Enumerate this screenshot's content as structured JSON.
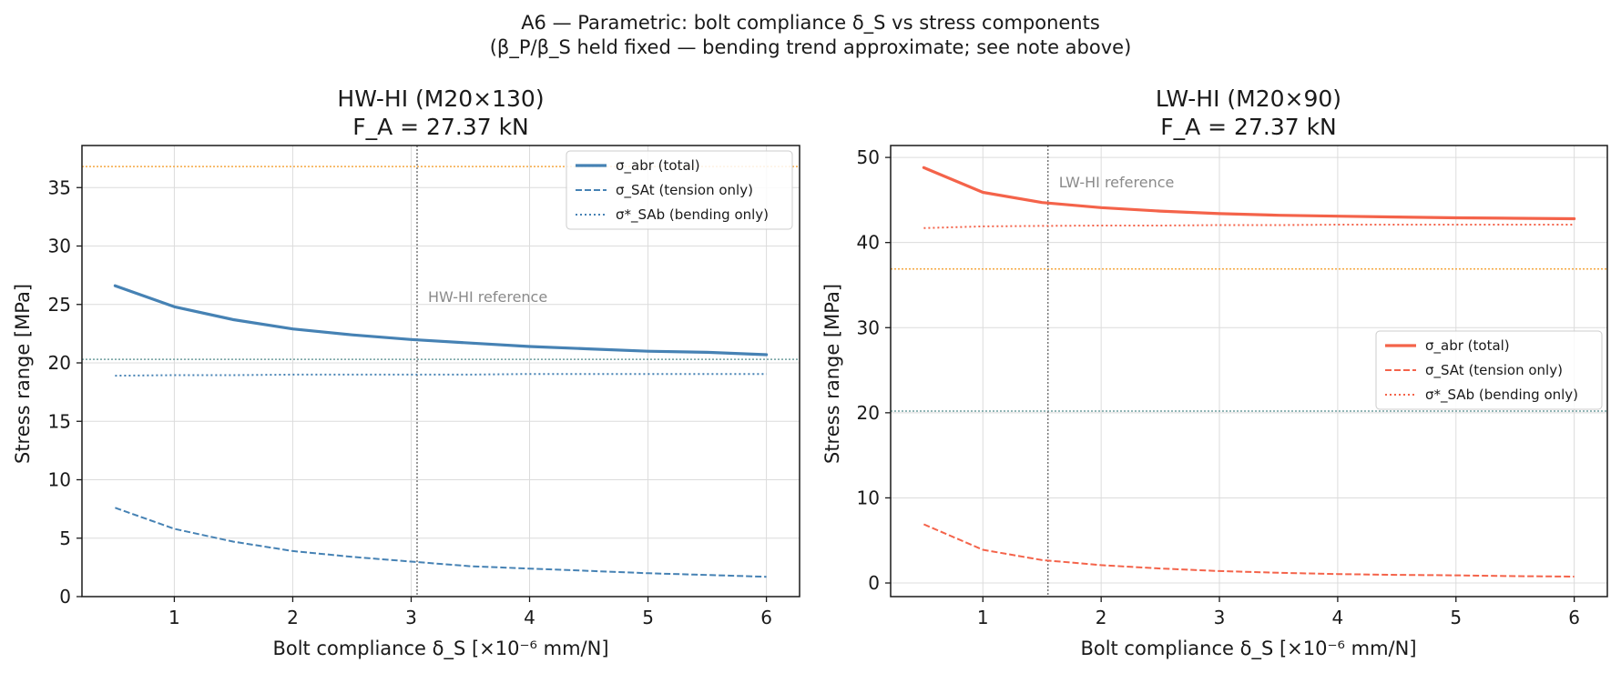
{
  "figure": {
    "suptitle_line1": "A6 — Parametric: bolt compliance δ_S vs stress components",
    "suptitle_line2": "(β_P/β_S held fixed — bending trend approximate; see note above)"
  },
  "chart_data": [
    {
      "type": "line",
      "title_line1": "HW-HI (M20×130)",
      "title_line2": "F_A = 27.37 kN",
      "xlabel": "Bolt compliance δ_S [×10⁻⁶ mm/N]",
      "ylabel": "Stress range [MPa]",
      "xlim": [
        0.22,
        6.28
      ],
      "ylim": [
        0,
        38.6
      ],
      "xticks": [
        1,
        2,
        3,
        4,
        5,
        6
      ],
      "yticks": [
        0,
        5,
        10,
        15,
        20,
        25,
        30,
        35
      ],
      "grid": true,
      "legend_position": "upper right",
      "color": "#4682b4",
      "reference": {
        "x": 3.05,
        "label": "HW-HI reference"
      },
      "hlines": [
        {
          "y": 36.8,
          "color": "#f5a742"
        },
        {
          "y": 20.3,
          "color": "#6e9e9e"
        }
      ],
      "x": [
        0.5,
        1,
        1.5,
        2,
        2.5,
        3,
        3.5,
        4,
        4.5,
        5,
        5.5,
        6
      ],
      "series": [
        {
          "name": "σ_abr (total)",
          "style": "solid",
          "values": [
            26.6,
            24.8,
            23.7,
            22.9,
            22.4,
            22.0,
            21.7,
            21.4,
            21.2,
            21.0,
            20.9,
            20.7
          ]
        },
        {
          "name": "σ_SAt (tension only)",
          "style": "dashed",
          "values": [
            7.6,
            5.8,
            4.7,
            3.9,
            3.4,
            3.0,
            2.6,
            2.4,
            2.2,
            2.0,
            1.85,
            1.7
          ]
        },
        {
          "name": "σ*_SAb (bending only)",
          "style": "dotted",
          "values": [
            18.9,
            18.95,
            18.95,
            19.0,
            19.0,
            19.0,
            19.0,
            19.05,
            19.05,
            19.05,
            19.05,
            19.05
          ]
        }
      ]
    },
    {
      "type": "line",
      "title_line1": "LW-HI (M20×90)",
      "title_line2": "F_A = 27.37 kN",
      "xlabel": "Bolt compliance δ_S [×10⁻⁶ mm/N]",
      "ylabel": "Stress range [MPa]",
      "xlim": [
        0.22,
        6.28
      ],
      "ylim": [
        -1.6,
        51.4
      ],
      "xticks": [
        1,
        2,
        3,
        4,
        5,
        6
      ],
      "yticks": [
        0,
        10,
        20,
        30,
        40,
        50
      ],
      "grid": true,
      "legend_position": "center right",
      "color": "#f4634a",
      "reference": {
        "x": 1.55,
        "label": "LW-HI reference"
      },
      "hlines": [
        {
          "y": 36.9,
          "color": "#f5a742"
        },
        {
          "y": 20.2,
          "color": "#6e9e9e"
        }
      ],
      "x": [
        0.5,
        1,
        1.5,
        2,
        2.5,
        3,
        3.5,
        4,
        4.5,
        5,
        5.5,
        6
      ],
      "series": [
        {
          "name": "σ_abr (total)",
          "style": "solid",
          "values": [
            48.8,
            45.9,
            44.7,
            44.1,
            43.7,
            43.4,
            43.2,
            43.1,
            43.0,
            42.9,
            42.85,
            42.8
          ]
        },
        {
          "name": "σ_SAt (tension only)",
          "style": "dashed",
          "values": [
            6.9,
            3.9,
            2.7,
            2.1,
            1.7,
            1.4,
            1.2,
            1.05,
            0.95,
            0.9,
            0.8,
            0.75
          ]
        },
        {
          "name": "σ*_SAb (bending only)",
          "style": "dotted",
          "values": [
            41.7,
            41.9,
            41.95,
            42.0,
            42.0,
            42.05,
            42.05,
            42.1,
            42.1,
            42.1,
            42.1,
            42.1
          ]
        }
      ]
    }
  ]
}
